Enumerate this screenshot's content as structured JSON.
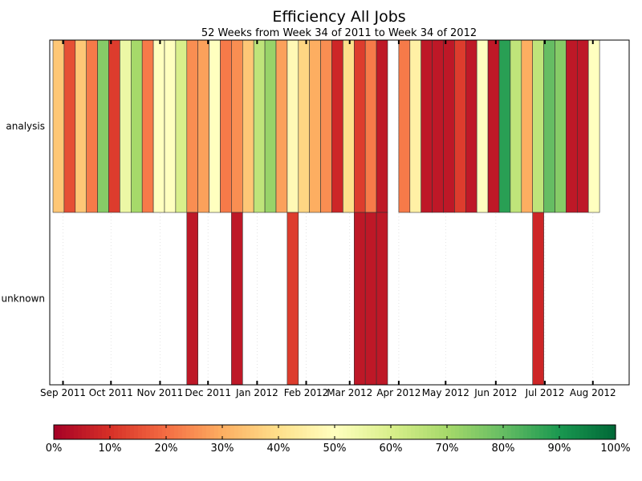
{
  "chart_data": {
    "type": "heatmap",
    "title": "Efficiency All Jobs",
    "subtitle": "52 Weeks from Week 34 of 2011 to Week 34 of 2012",
    "rows": [
      "analysis",
      "unknown"
    ],
    "x_tick_labels": [
      "Sep 2011",
      "Oct 2011",
      "Nov 2011",
      "Dec 2011",
      "Jan 2012",
      "Feb 2012",
      "Mar 2012",
      "Apr 2012",
      "May 2012",
      "Jun 2012",
      "Jul 2012",
      "Aug 2012"
    ],
    "x_tick_week_positions": [
      0.9,
      5.2,
      9.6,
      13.9,
      18.3,
      22.7,
      26.6,
      31.0,
      35.2,
      39.7,
      44.1,
      48.4
    ],
    "n_weeks": 52,
    "series": [
      {
        "name": "analysis",
        "values": [
          35,
          15,
          35,
          22,
          75,
          12,
          55,
          70,
          22,
          50,
          50,
          60,
          25,
          28,
          50,
          22,
          25,
          35,
          65,
          72,
          28,
          48,
          38,
          30,
          25,
          8,
          40,
          12,
          22,
          5,
          null,
          22,
          45,
          5,
          5,
          5,
          12,
          5,
          50,
          5,
          88,
          65,
          30,
          65,
          80,
          75,
          5,
          5,
          50,
          null,
          null,
          null
        ]
      },
      {
        "name": "unknown",
        "values": [
          null,
          null,
          null,
          null,
          null,
          null,
          null,
          null,
          null,
          null,
          null,
          null,
          5,
          null,
          null,
          null,
          5,
          null,
          null,
          null,
          null,
          12,
          null,
          null,
          null,
          null,
          null,
          5,
          5,
          5,
          null,
          null,
          null,
          null,
          null,
          null,
          null,
          null,
          null,
          null,
          null,
          null,
          null,
          8,
          null,
          null,
          null,
          null,
          null,
          null,
          null,
          null
        ]
      }
    ],
    "colorbar": {
      "min": 0,
      "max": 100,
      "tick_labels": [
        "0%",
        "10%",
        "20%",
        "30%",
        "40%",
        "50%",
        "60%",
        "70%",
        "80%",
        "90%",
        "100%"
      ],
      "colormap": "RdYlGn"
    }
  }
}
